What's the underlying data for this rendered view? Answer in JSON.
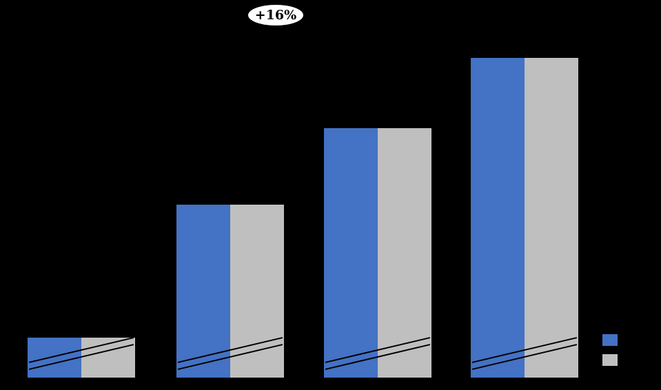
{
  "chart_data": {
    "type": "bar",
    "title": "",
    "xlabel": "",
    "ylabel": "",
    "categories": [
      "",
      "",
      "",
      ""
    ],
    "series": [
      {
        "name": "blue",
        "color": "#4472C4",
        "values": [
          12.5,
          54,
          78,
          100
        ]
      },
      {
        "name": "gray",
        "color": "#BFBFBF",
        "values": [
          12.5,
          54,
          78,
          100
        ]
      }
    ],
    "ylim": [
      0,
      100
    ],
    "annotation": "+16%",
    "axis_break": true,
    "grid": false,
    "legend_position": "bottom-right",
    "background_color": "#000000"
  }
}
